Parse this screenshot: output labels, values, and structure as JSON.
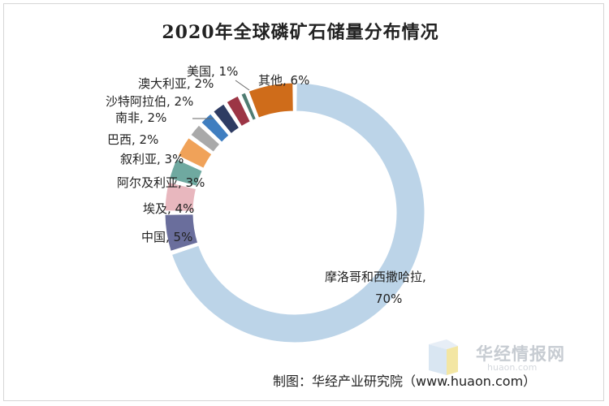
{
  "title": "2020年全球磷矿石储量分布情况",
  "chart_data": {
    "type": "pie",
    "donut": true,
    "title": "2020年全球磷矿石储量分布情况",
    "slices": [
      {
        "label": "摩洛哥和西撒哈拉",
        "value": 70,
        "display": "摩洛哥和西撒哈拉,",
        "display2": "70%",
        "color": "#bcd4e8"
      },
      {
        "label": "中国",
        "value": 5,
        "display": "中国, 5%",
        "color": "#6a6e9c"
      },
      {
        "label": "埃及",
        "value": 4,
        "display": "埃及, 4%",
        "color": "#e8b7be"
      },
      {
        "label": "阿尔及利亚",
        "value": 3,
        "display": "阿尔及利亚, 3%",
        "color": "#6fa9a0"
      },
      {
        "label": "叙利亚",
        "value": 3,
        "display": "叙利亚, 3%",
        "color": "#f0a259"
      },
      {
        "label": "巴西",
        "value": 2,
        "display": "巴西, 2%",
        "color": "#a9a9a9"
      },
      {
        "label": "南非",
        "value": 2,
        "display": "南非, 2%",
        "color": "#3f7ec0"
      },
      {
        "label": "沙特阿拉伯",
        "value": 2,
        "display": "沙特阿拉伯, 2%",
        "color": "#2e3c63"
      },
      {
        "label": "澳大利亚",
        "value": 2,
        "display": "澳大利亚, 2%",
        "color": "#9c3545"
      },
      {
        "label": "美国",
        "value": 1,
        "display": "美国, 1%",
        "color": "#4f7c72"
      },
      {
        "label": "其他",
        "value": 6,
        "display": "其他, 6%",
        "color": "#cf6c1a"
      }
    ]
  },
  "watermark": {
    "text": "华经情报网",
    "sub": "huaon.com"
  },
  "footer": "制图：华经产业研究院（www.huaon.com）"
}
